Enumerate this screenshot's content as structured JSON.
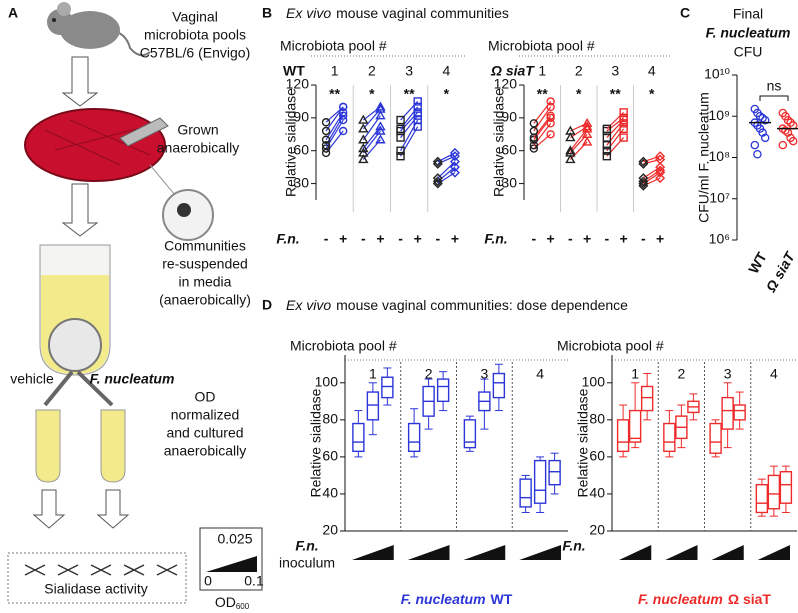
{
  "panel_labels": [
    "A",
    "B",
    "C",
    "D"
  ],
  "diagram": {
    "step1": [
      "Vaginal",
      "microbiota pools",
      "C57BL/6 (Envigo)"
    ],
    "step2": [
      "Grown",
      "anaerobically"
    ],
    "step3": [
      "Communities",
      "re-suspended",
      "in media",
      "(anaerobically)"
    ],
    "branches": [
      "vehicle",
      "F. nucleatum"
    ],
    "step4": [
      "OD",
      "normalized",
      "and cultured",
      "anaerobically"
    ],
    "result": "Sialidase activity",
    "inoculum_key": {
      "top": "0.025",
      "low": "0",
      "high": "0.1",
      "label": "OD",
      "label_sub": "600"
    }
  },
  "panel_b_title": [
    "Ex vivo",
    "mouse vaginal communities"
  ],
  "panel_d_title": [
    "Ex vivo",
    "mouse vaginal communities: dose dependence"
  ],
  "chart_data": [
    {
      "type": "paired",
      "group_title": "Microbiota pool #",
      "strain": "WT",
      "strain_color": "#2b35d8",
      "color": "#2b35d8",
      "categories": [
        "1",
        "2",
        "3",
        "4"
      ],
      "markers": [
        "circle",
        "triangle",
        "square",
        "diamond"
      ],
      "treatment_label": "F.n.",
      "treatment_levels": [
        "-",
        "+"
      ],
      "ylabel": "Relative sialidase",
      "ylim": [
        15,
        120
      ],
      "yticks": [
        30,
        60,
        90,
        120
      ],
      "groups": [
        {
          "minus": [
            58,
            62,
            65,
            70,
            78,
            86
          ],
          "plus": [
            78,
            88,
            92,
            95,
            100,
            100
          ],
          "sig": "**"
        },
        {
          "minus": [
            52,
            58,
            62,
            70,
            80,
            88
          ],
          "plus": [
            70,
            78,
            82,
            92,
            98,
            100
          ],
          "sig": "*"
        },
        {
          "minus": [
            55,
            60,
            72,
            78,
            80,
            88
          ],
          "plus": [
            82,
            88,
            92,
            95,
            100,
            105
          ],
          "sig": "**"
        },
        {
          "minus": [
            30,
            32,
            35,
            48,
            50
          ],
          "plus": [
            40,
            45,
            50,
            55,
            58
          ],
          "sig": "*"
        }
      ]
    },
    {
      "type": "paired",
      "group_title": "Microbiota pool #",
      "strain": "Ω siaT",
      "strain_color": "#e0245e",
      "color": "#ee2a2a",
      "categories": [
        "1",
        "2",
        "3",
        "4"
      ],
      "markers": [
        "circle",
        "triangle",
        "square",
        "diamond"
      ],
      "treatment_label": "F.n.",
      "treatment_levels": [
        "-",
        "+"
      ],
      "ylabel": "Relative sialidase",
      "ylim": [
        15,
        120
      ],
      "yticks": [
        30,
        60,
        90,
        120
      ],
      "groups": [
        {
          "minus": [
            62,
            65,
            70,
            72,
            78,
            85
          ],
          "plus": [
            75,
            85,
            90,
            92,
            100,
            105
          ],
          "sig": "**"
        },
        {
          "minus": [
            52,
            58,
            60,
            72,
            78
          ],
          "plus": [
            68,
            75,
            80,
            82,
            85
          ],
          "sig": "*"
        },
        {
          "minus": [
            55,
            60,
            65,
            72,
            78,
            80
          ],
          "plus": [
            72,
            80,
            85,
            88,
            90,
            95
          ],
          "sig": "**"
        },
        {
          "minus": [
            28,
            30,
            32,
            35,
            48,
            50
          ],
          "plus": [
            35,
            40,
            42,
            45,
            52,
            55
          ],
          "sig": "*"
        }
      ]
    },
    {
      "type": "strip",
      "title": [
        "Final",
        "F. nucleatum",
        "CFU"
      ],
      "ylabel": "CFU/ml F. nucleatum",
      "ylog": true,
      "ylim": [
        1000000,
        10000000000
      ],
      "yticks": [
        {
          "value": 1000000,
          "label": "10⁶"
        },
        {
          "value": 10000000,
          "label": "10⁷"
        },
        {
          "value": 100000000,
          "label": "10⁸"
        },
        {
          "value": 1000000000,
          "label": "10⁹"
        },
        {
          "value": 10000000000,
          "label": "10¹⁰"
        }
      ],
      "annotation": "ns",
      "series": [
        {
          "name": "WT",
          "color": "#2b35d8",
          "values": [
            1500000000,
            1200000000,
            1000000000,
            900000000,
            800000000,
            700000000,
            600000000,
            500000000,
            400000000,
            300000000,
            200000000,
            120000000
          ],
          "median": 700000000
        },
        {
          "name": "Ω siaT",
          "color": "#ee2a2a",
          "values": [
            1200000000,
            1000000000,
            800000000,
            700000000,
            600000000,
            500000000,
            450000000,
            400000000,
            300000000,
            250000000,
            200000000
          ],
          "median": 500000000
        }
      ]
    },
    {
      "type": "box",
      "group_title": "Microbiota pool #",
      "categories": [
        "1",
        "2",
        "3",
        "4"
      ],
      "ylabel": "Relative sialidase",
      "ylim": [
        20,
        115
      ],
      "yticks": [
        20,
        40,
        60,
        80,
        100
      ],
      "color": "#2b35d8",
      "treatment_label": [
        "F.n.",
        "inoculum"
      ],
      "caption": [
        "F. nucleatum",
        "WT"
      ],
      "boxes": [
        [
          [
            60,
            63,
            68,
            78,
            85
          ],
          [
            72,
            80,
            88,
            95,
            100
          ],
          [
            88,
            92,
            98,
            103,
            108
          ]
        ],
        [
          [
            60,
            63,
            68,
            78,
            86
          ],
          [
            75,
            82,
            90,
            98,
            102
          ],
          [
            85,
            90,
            98,
            102,
            106
          ]
        ],
        [
          [
            63,
            65,
            68,
            80,
            82
          ],
          [
            75,
            85,
            90,
            95,
            102
          ],
          [
            85,
            92,
            100,
            105,
            110
          ]
        ],
        [
          [
            30,
            33,
            38,
            48,
            50
          ],
          [
            30,
            35,
            42,
            58,
            60
          ],
          [
            40,
            45,
            52,
            58,
            62
          ]
        ]
      ]
    },
    {
      "type": "box",
      "group_title": "Microbiota pool #",
      "categories": [
        "1",
        "2",
        "3",
        "4"
      ],
      "ylabel": "Relative sialidase",
      "ylim": [
        20,
        115
      ],
      "yticks": [
        20,
        40,
        60,
        80,
        100
      ],
      "color": "#ee2a2a",
      "treatment_label": [
        "F.n."
      ],
      "caption": [
        "F. nucleatum",
        "Ω siaT"
      ],
      "boxes": [
        [
          [
            60,
            63,
            68,
            80,
            88
          ],
          [
            65,
            68,
            70,
            85,
            100
          ],
          [
            80,
            85,
            92,
            98,
            105
          ]
        ],
        [
          [
            60,
            63,
            68,
            78,
            85
          ],
          [
            65,
            70,
            76,
            82,
            88
          ],
          [
            80,
            84,
            87,
            90,
            94
          ]
        ],
        [
          [
            60,
            62,
            68,
            78,
            80
          ],
          [
            65,
            75,
            85,
            92,
            100
          ],
          [
            75,
            80,
            85,
            88,
            95
          ]
        ],
        [
          [
            28,
            30,
            35,
            45,
            48
          ],
          [
            28,
            32,
            40,
            50,
            55
          ],
          [
            30,
            35,
            45,
            52,
            55
          ]
        ]
      ]
    }
  ]
}
